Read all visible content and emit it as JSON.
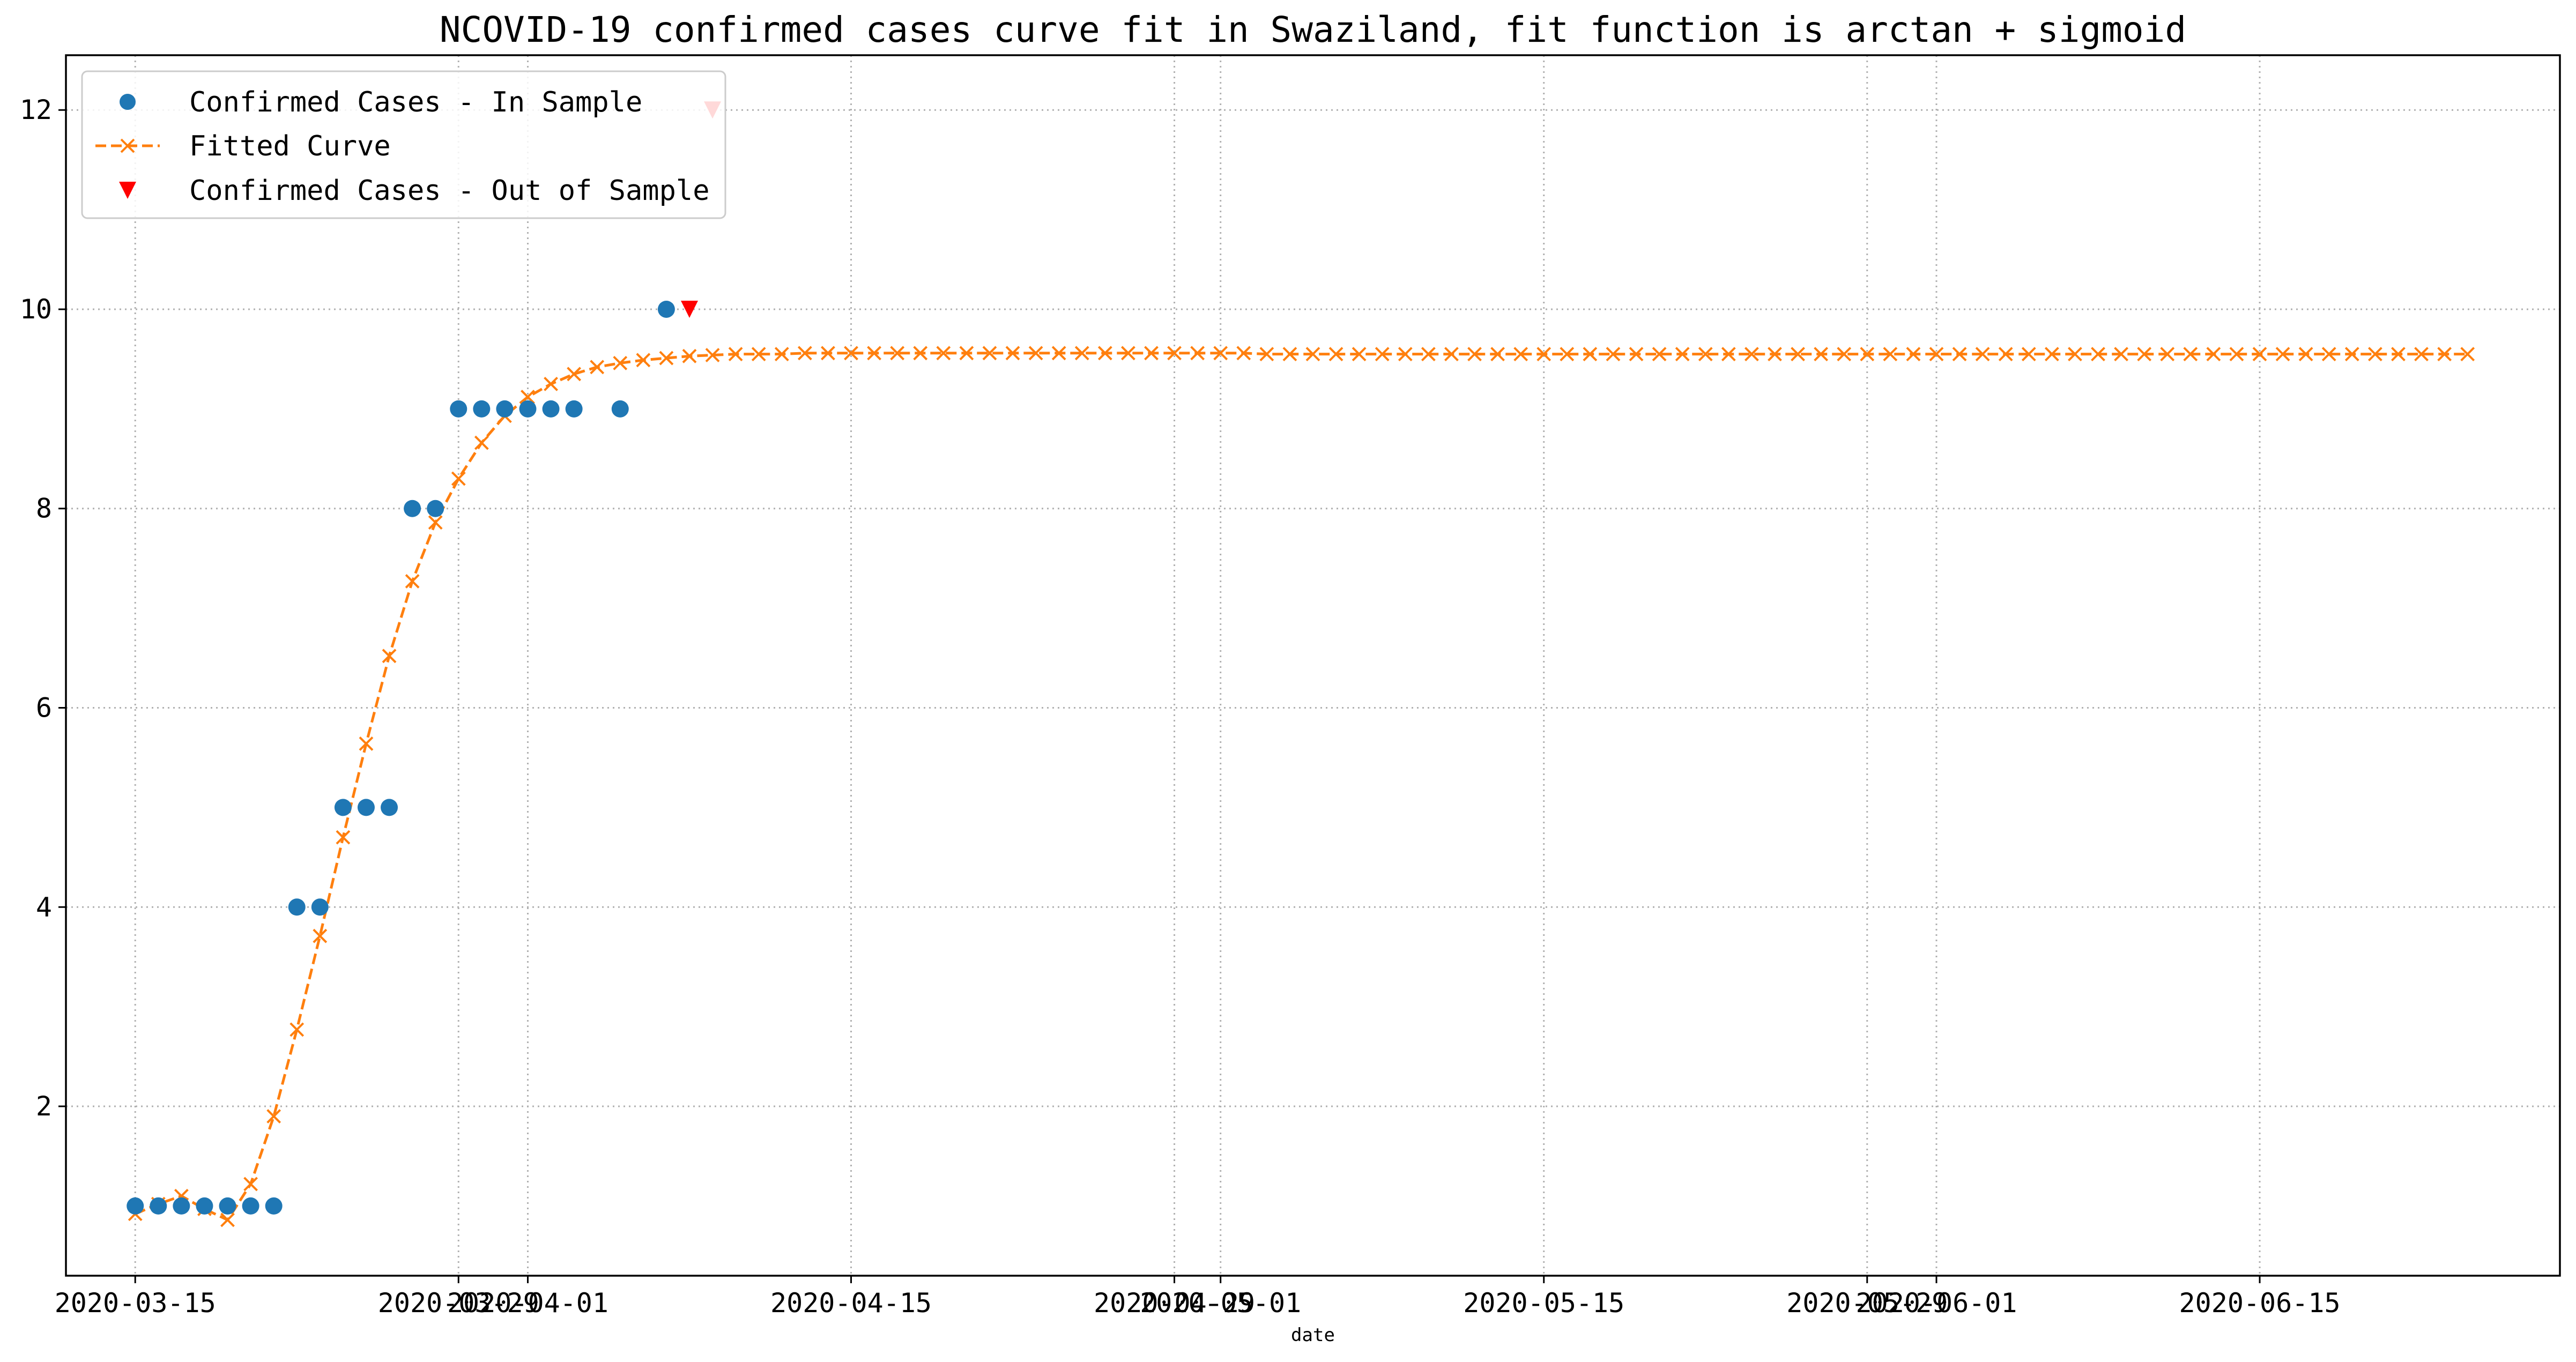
{
  "chart_data": {
    "type": "line",
    "title": "NCOVID-19 confirmed cases curve fit in Swaziland, fit function is arctan + sigmoid",
    "xlabel": "date",
    "ylabel": "",
    "grid": true,
    "legend_position": "top-left",
    "x_axis": {
      "kind": "date",
      "range": [
        "2020-03-12",
        "2020-06-28"
      ],
      "ticks": [
        "2020-03-15",
        "2020-03-29",
        "2020-04-01",
        "2020-04-15",
        "2020-04-29",
        "2020-05-01",
        "2020-05-15",
        "2020-05-29",
        "2020-06-01",
        "2020-06-15"
      ]
    },
    "y_axis": {
      "range": [
        0.3,
        12.55
      ],
      "ticks": [
        2,
        4,
        6,
        8,
        10,
        12
      ]
    },
    "series": [
      {
        "name": "Confirmed Cases - In Sample",
        "style": "dots",
        "color": "#1f77b4",
        "points": [
          [
            "2020-03-15",
            1
          ],
          [
            "2020-03-16",
            1
          ],
          [
            "2020-03-17",
            1
          ],
          [
            "2020-03-18",
            1
          ],
          [
            "2020-03-19",
            1
          ],
          [
            "2020-03-20",
            1
          ],
          [
            "2020-03-21",
            1
          ],
          [
            "2020-03-22",
            4
          ],
          [
            "2020-03-23",
            4
          ],
          [
            "2020-03-24",
            5
          ],
          [
            "2020-03-25",
            5
          ],
          [
            "2020-03-26",
            5
          ],
          [
            "2020-03-27",
            8
          ],
          [
            "2020-03-28",
            8
          ],
          [
            "2020-03-29",
            9
          ],
          [
            "2020-03-30",
            9
          ],
          [
            "2020-03-31",
            9
          ],
          [
            "2020-04-01",
            9
          ],
          [
            "2020-04-02",
            9
          ],
          [
            "2020-04-03",
            9
          ],
          [
            "2020-04-05",
            9
          ],
          [
            "2020-04-07",
            10
          ]
        ]
      },
      {
        "name": "Fitted Curve",
        "style": "dashed-x",
        "color": "#ff7f0e",
        "start_date": "2020-03-15",
        "values": [
          0.92,
          1.02,
          1.1,
          0.97,
          0.86,
          1.22,
          1.9,
          2.77,
          3.71,
          4.7,
          5.64,
          6.52,
          7.27,
          7.86,
          8.3,
          8.66,
          8.93,
          9.12,
          9.25,
          9.35,
          9.42,
          9.46,
          9.49,
          9.51,
          9.53,
          9.54,
          9.55,
          9.55,
          9.55,
          9.56,
          9.56,
          9.56,
          9.56,
          9.56,
          9.56,
          9.56,
          9.56,
          9.56,
          9.56,
          9.56,
          9.56,
          9.56,
          9.56,
          9.56,
          9.56,
          9.56,
          9.56,
          9.56,
          9.56,
          9.55,
          9.55,
          9.55,
          9.55,
          9.55,
          9.55,
          9.55,
          9.55,
          9.55,
          9.55,
          9.55,
          9.55,
          9.55,
          9.55,
          9.55,
          9.55,
          9.55,
          9.55,
          9.55,
          9.55,
          9.55,
          9.55,
          9.55,
          9.55,
          9.55,
          9.55,
          9.55,
          9.55,
          9.55,
          9.55,
          9.55,
          9.55,
          9.55,
          9.55,
          9.55,
          9.55,
          9.55,
          9.55,
          9.55,
          9.55,
          9.55,
          9.55,
          9.55,
          9.55,
          9.55,
          9.55,
          9.55,
          9.55,
          9.55,
          9.55,
          9.55,
          9.55,
          9.55
        ]
      },
      {
        "name": "Confirmed Cases - Out of Sample",
        "style": "triangles",
        "color": "#ff0000",
        "points": [
          [
            "2020-04-08",
            10
          ],
          [
            "2020-04-09",
            12
          ]
        ]
      }
    ]
  }
}
